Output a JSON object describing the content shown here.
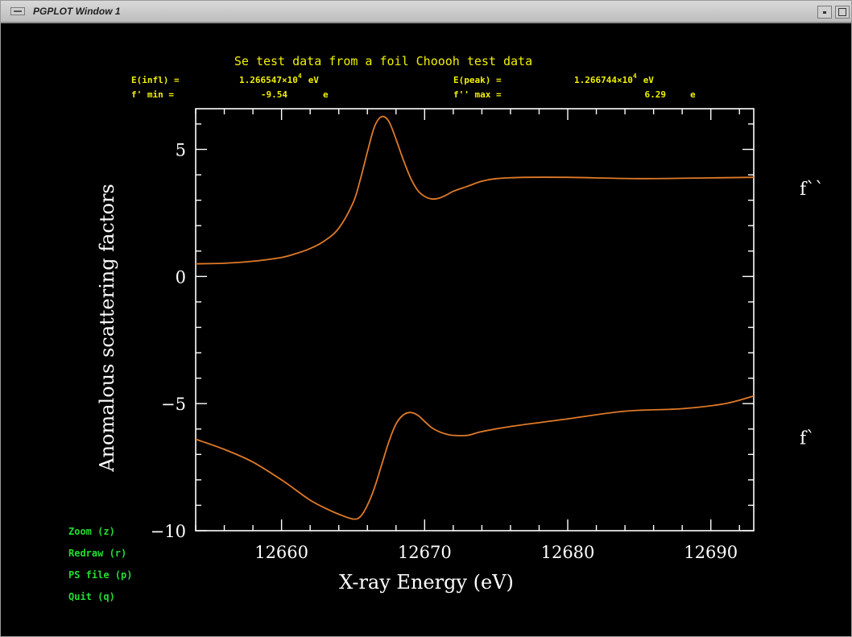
{
  "window": {
    "title": "PGPLOT Window 1"
  },
  "header": {
    "title": "Se test data from a foil Choooh test data",
    "einfl_label": "E(infl) =",
    "einfl_value": "1.266547×10",
    "einfl_exp": "4",
    "einfl_unit": "eV",
    "epeak_label": "E(peak) =",
    "epeak_value": "1.266744×10",
    "epeak_exp": "4",
    "epeak_unit": "eV",
    "fmin_label": "f' min =",
    "fmin_value": "-9.54",
    "fmin_unit": "e",
    "fmax_label": "f'' max =",
    "fmax_value": "6.29",
    "fmax_unit": "e"
  },
  "controls": {
    "zoom": "Zoom (z)",
    "redraw": "Redraw (r)",
    "psfile": "PS file (p)",
    "quit": "Quit (q)"
  },
  "colors": {
    "header_text": "#f0f000",
    "axis": "#ffffff",
    "curve": "#e07a28",
    "controls": "#22dd33",
    "background": "#000000"
  },
  "chart_data": {
    "type": "line",
    "title": "Se test data from a foil Choooh test data",
    "xlabel": "X-ray Energy (eV)",
    "ylabel": "Anomalous scattering factors",
    "xlim": [
      12654,
      12693
    ],
    "ylim": [
      -10,
      6.6
    ],
    "xticks": [
      12660,
      12670,
      12680,
      12690
    ],
    "xtick_labels": [
      "12660",
      "12670",
      "12680",
      "12690"
    ],
    "yticks": [
      5,
      0,
      -5,
      -10
    ],
    "ytick_labels": [
      "5",
      "0",
      "−5",
      "−10"
    ],
    "grid": false,
    "series": [
      {
        "name": "f``",
        "x": [
          12654,
          12656,
          12658,
          12660,
          12661,
          12662,
          12663,
          12664,
          12665,
          12665.5,
          12666,
          12666.5,
          12667,
          12667.5,
          12668,
          12668.5,
          12669,
          12669.5,
          12670,
          12670.5,
          12671,
          12671.5,
          12672,
          12673,
          12674,
          12675,
          12677,
          12680,
          12685,
          12690,
          12693
        ],
        "y": [
          0.5,
          0.52,
          0.6,
          0.75,
          0.9,
          1.1,
          1.4,
          1.9,
          2.9,
          3.8,
          4.9,
          5.9,
          6.29,
          6.1,
          5.4,
          4.6,
          3.9,
          3.4,
          3.15,
          3.05,
          3.08,
          3.2,
          3.35,
          3.55,
          3.75,
          3.85,
          3.9,
          3.9,
          3.85,
          3.88,
          3.9
        ]
      },
      {
        "name": "f`",
        "x": [
          12654,
          12656,
          12658,
          12660,
          12661,
          12662,
          12663,
          12664,
          12665,
          12665.5,
          12666,
          12666.5,
          12667,
          12667.5,
          12668,
          12668.5,
          12669,
          12669.5,
          12670,
          12670.5,
          12671,
          12671.5,
          12672,
          12673,
          12674,
          12676,
          12680,
          12684,
          12688,
          12691,
          12693
        ],
        "y": [
          -6.4,
          -6.8,
          -7.3,
          -8.0,
          -8.4,
          -8.8,
          -9.1,
          -9.35,
          -9.54,
          -9.45,
          -9.0,
          -8.3,
          -7.4,
          -6.5,
          -5.8,
          -5.45,
          -5.35,
          -5.45,
          -5.7,
          -5.95,
          -6.1,
          -6.2,
          -6.25,
          -6.25,
          -6.1,
          -5.9,
          -5.6,
          -5.3,
          -5.2,
          -5.0,
          -4.7
        ]
      }
    ]
  }
}
